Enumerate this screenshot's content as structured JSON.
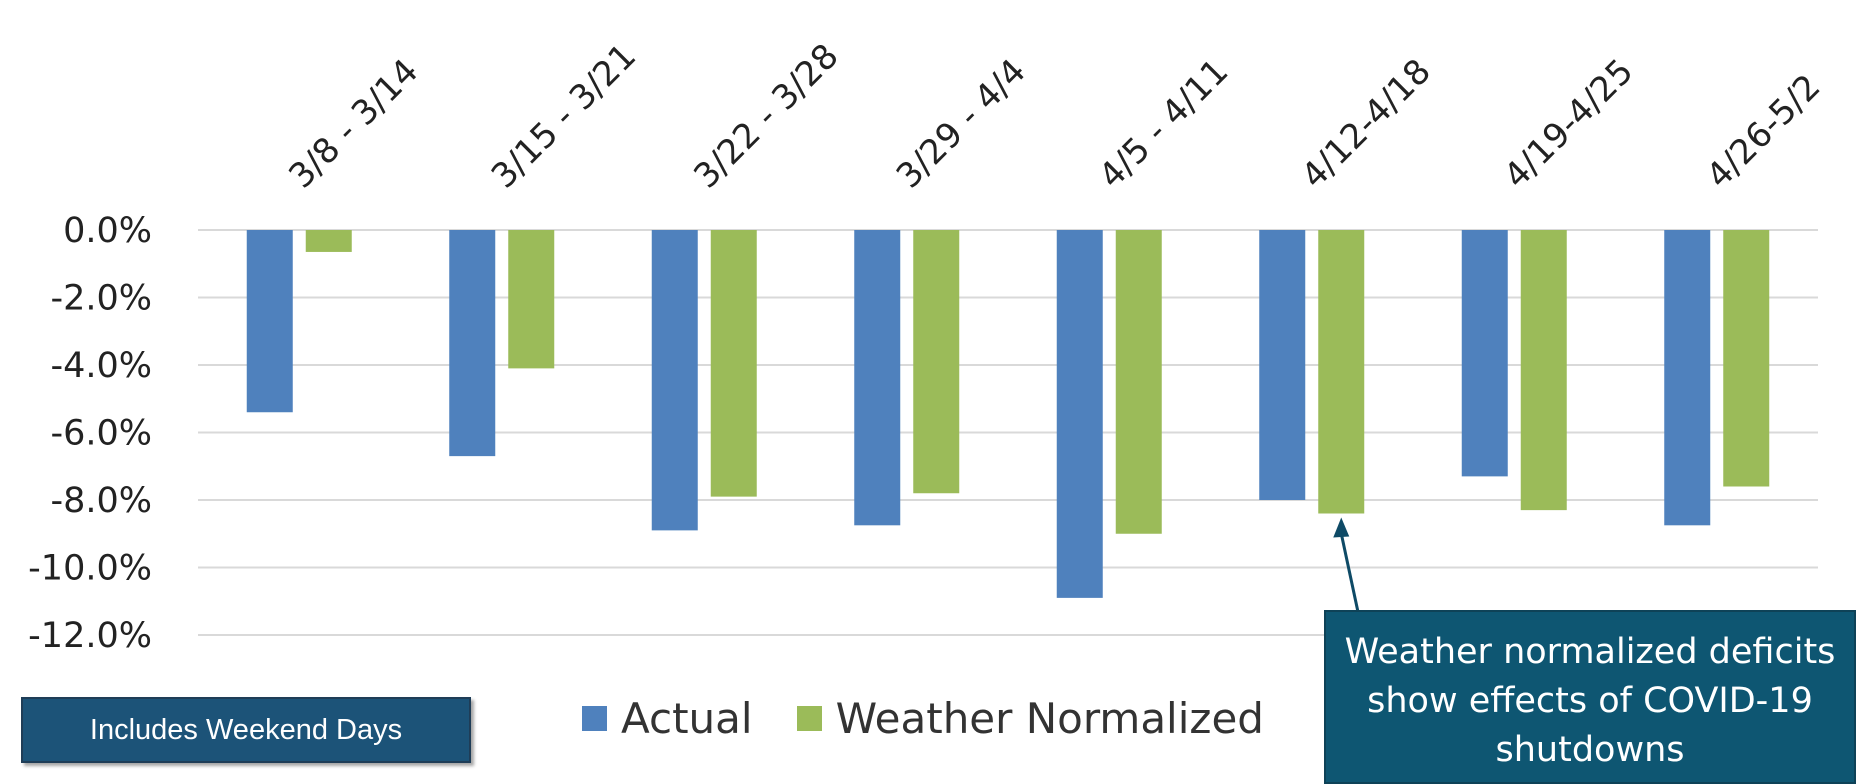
{
  "chart_data": {
    "type": "bar",
    "categories": [
      "3/8 - 3/14",
      "3/15 - 3/21",
      "3/22 - 3/28",
      "3/29 - 4/4",
      "4/5 - 4/11",
      "4/12-4/18",
      "4/19-4/25",
      "4/26-5/2"
    ],
    "series": [
      {
        "name": "Actual",
        "color": "#4f81bd",
        "values": [
          -5.4,
          -6.7,
          -8.9,
          -8.75,
          -10.9,
          -8.0,
          -7.3,
          -8.75
        ]
      },
      {
        "name": "Weather Normalized",
        "color": "#9bbb59",
        "values": [
          -0.65,
          -4.1,
          -7.9,
          -7.8,
          -9.0,
          -8.4,
          -8.3,
          -7.6
        ]
      }
    ],
    "yticks": [
      "0.0%",
      "-2.0%",
      "-4.0%",
      "-6.0%",
      "-8.0%",
      "-10.0%",
      "-12.0%"
    ],
    "ylim": [
      -12,
      0
    ],
    "grid": true,
    "legend_position": "bottom",
    "title": "",
    "xlabel": "",
    "ylabel": ""
  },
  "legend": {
    "actual_label": "Actual",
    "normalized_label": "Weather Normalized"
  },
  "note_box": {
    "text": "Includes Weekend Days",
    "bg": "#1c5378"
  },
  "callout": {
    "lines": [
      "Weather normalized deficits",
      "show effects of COVID-19",
      "shutdowns"
    ],
    "bg": "#0e5672",
    "arrow_color": "#0e4a66"
  }
}
